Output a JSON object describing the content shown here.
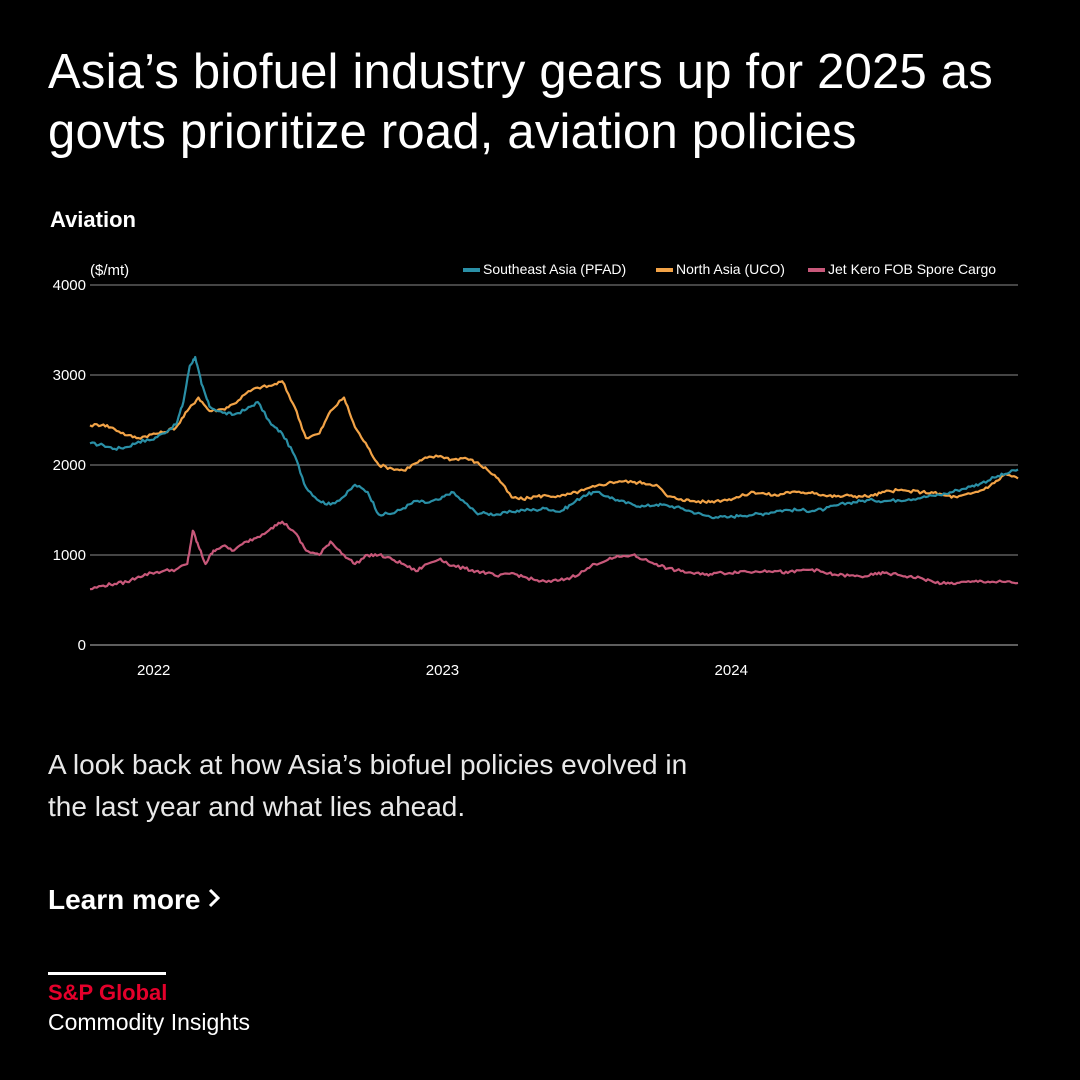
{
  "header": {
    "title": "Asia’s biofuel industry gears up for 2025 as govts prioritize road, aviation policies",
    "subtitle": "Aviation"
  },
  "chart_data": {
    "type": "line",
    "unit_label": "($/mt)",
    "ylim": [
      0,
      4000
    ],
    "yticks": [
      0,
      1000,
      2000,
      3000,
      4000
    ],
    "xlim": [
      "2021-10-15",
      "2024-12-31"
    ],
    "xtick_labels": [
      {
        "date": "2022-01-01",
        "label": "2022"
      },
      {
        "date": "2023-01-01",
        "label": "2023"
      },
      {
        "date": "2024-01-01",
        "label": "2024"
      }
    ],
    "grid": true,
    "legend_position": "top-right",
    "series": [
      {
        "name": "Southeast Asia (PFAD)",
        "color": "#2a8fa6",
        "points": [
          [
            "2021-10-15",
            2240
          ],
          [
            "2021-11-01",
            2220
          ],
          [
            "2021-11-15",
            2180
          ],
          [
            "2021-12-01",
            2200
          ],
          [
            "2021-12-15",
            2260
          ],
          [
            "2022-01-01",
            2280
          ],
          [
            "2022-01-15",
            2350
          ],
          [
            "2022-02-01",
            2450
          ],
          [
            "2022-02-10",
            2700
          ],
          [
            "2022-02-18",
            3100
          ],
          [
            "2022-02-25",
            3200
          ],
          [
            "2022-03-05",
            2900
          ],
          [
            "2022-03-15",
            2650
          ],
          [
            "2022-04-01",
            2580
          ],
          [
            "2022-04-15",
            2560
          ],
          [
            "2022-05-01",
            2620
          ],
          [
            "2022-05-15",
            2700
          ],
          [
            "2022-06-01",
            2450
          ],
          [
            "2022-06-15",
            2350
          ],
          [
            "2022-07-01",
            2100
          ],
          [
            "2022-07-15",
            1750
          ],
          [
            "2022-08-01",
            1600
          ],
          [
            "2022-08-15",
            1560
          ],
          [
            "2022-09-01",
            1650
          ],
          [
            "2022-09-15",
            1780
          ],
          [
            "2022-10-01",
            1700
          ],
          [
            "2022-10-15",
            1450
          ],
          [
            "2022-11-01",
            1460
          ],
          [
            "2022-11-15",
            1520
          ],
          [
            "2022-12-01",
            1600
          ],
          [
            "2022-12-15",
            1580
          ],
          [
            "2023-01-01",
            1620
          ],
          [
            "2023-01-15",
            1700
          ],
          [
            "2023-02-01",
            1580
          ],
          [
            "2023-02-15",
            1470
          ],
          [
            "2023-03-01",
            1460
          ],
          [
            "2023-03-15",
            1450
          ],
          [
            "2023-04-01",
            1480
          ],
          [
            "2023-04-15",
            1500
          ],
          [
            "2023-05-01",
            1500
          ],
          [
            "2023-05-15",
            1520
          ],
          [
            "2023-06-01",
            1480
          ],
          [
            "2023-06-15",
            1560
          ],
          [
            "2023-07-01",
            1660
          ],
          [
            "2023-07-15",
            1700
          ],
          [
            "2023-08-01",
            1650
          ],
          [
            "2023-08-15",
            1600
          ],
          [
            "2023-09-01",
            1560
          ],
          [
            "2023-09-15",
            1540
          ],
          [
            "2023-10-01",
            1560
          ],
          [
            "2023-10-15",
            1550
          ],
          [
            "2023-11-01",
            1520
          ],
          [
            "2023-11-15",
            1480
          ],
          [
            "2023-12-01",
            1440
          ],
          [
            "2023-12-15",
            1420
          ],
          [
            "2024-01-01",
            1420
          ],
          [
            "2024-01-15",
            1440
          ],
          [
            "2024-02-01",
            1450
          ],
          [
            "2024-02-15",
            1460
          ],
          [
            "2024-03-01",
            1490
          ],
          [
            "2024-03-15",
            1500
          ],
          [
            "2024-04-01",
            1500
          ],
          [
            "2024-04-15",
            1490
          ],
          [
            "2024-05-01",
            1510
          ],
          [
            "2024-05-15",
            1550
          ],
          [
            "2024-06-01",
            1580
          ],
          [
            "2024-06-15",
            1600
          ],
          [
            "2024-07-01",
            1610
          ],
          [
            "2024-07-15",
            1600
          ],
          [
            "2024-08-01",
            1610
          ],
          [
            "2024-08-15",
            1620
          ],
          [
            "2024-09-01",
            1640
          ],
          [
            "2024-09-15",
            1660
          ],
          [
            "2024-10-01",
            1680
          ],
          [
            "2024-10-15",
            1720
          ],
          [
            "2024-11-01",
            1760
          ],
          [
            "2024-11-15",
            1800
          ],
          [
            "2024-12-01",
            1860
          ],
          [
            "2024-12-15",
            1900
          ],
          [
            "2024-12-31",
            1950
          ]
        ]
      },
      {
        "name": "North Asia (UCO)",
        "color": "#f2a347",
        "points": [
          [
            "2021-10-15",
            2440
          ],
          [
            "2021-11-01",
            2450
          ],
          [
            "2021-11-15",
            2400
          ],
          [
            "2021-12-01",
            2330
          ],
          [
            "2021-12-15",
            2300
          ],
          [
            "2022-01-01",
            2340
          ],
          [
            "2022-01-15",
            2360
          ],
          [
            "2022-02-01",
            2420
          ],
          [
            "2022-02-15",
            2600
          ],
          [
            "2022-03-01",
            2750
          ],
          [
            "2022-03-15",
            2600
          ],
          [
            "2022-04-01",
            2620
          ],
          [
            "2022-04-15",
            2680
          ],
          [
            "2022-05-01",
            2800
          ],
          [
            "2022-05-15",
            2860
          ],
          [
            "2022-06-01",
            2880
          ],
          [
            "2022-06-15",
            2930
          ],
          [
            "2022-07-01",
            2640
          ],
          [
            "2022-07-15",
            2300
          ],
          [
            "2022-08-01",
            2350
          ],
          [
            "2022-08-15",
            2600
          ],
          [
            "2022-09-01",
            2750
          ],
          [
            "2022-09-15",
            2420
          ],
          [
            "2022-10-01",
            2200
          ],
          [
            "2022-10-15",
            2000
          ],
          [
            "2022-11-01",
            1960
          ],
          [
            "2022-11-15",
            1940
          ],
          [
            "2022-12-01",
            2020
          ],
          [
            "2022-12-15",
            2080
          ],
          [
            "2023-01-01",
            2100
          ],
          [
            "2023-01-15",
            2060
          ],
          [
            "2023-02-01",
            2080
          ],
          [
            "2023-02-15",
            2030
          ],
          [
            "2023-03-01",
            1950
          ],
          [
            "2023-03-15",
            1850
          ],
          [
            "2023-04-01",
            1640
          ],
          [
            "2023-04-15",
            1620
          ],
          [
            "2023-05-01",
            1650
          ],
          [
            "2023-05-15",
            1660
          ],
          [
            "2023-06-01",
            1650
          ],
          [
            "2023-06-15",
            1680
          ],
          [
            "2023-07-01",
            1720
          ],
          [
            "2023-07-15",
            1760
          ],
          [
            "2023-08-01",
            1800
          ],
          [
            "2023-08-15",
            1820
          ],
          [
            "2023-09-01",
            1810
          ],
          [
            "2023-09-15",
            1800
          ],
          [
            "2023-10-01",
            1780
          ],
          [
            "2023-10-15",
            1650
          ],
          [
            "2023-11-01",
            1620
          ],
          [
            "2023-11-15",
            1600
          ],
          [
            "2023-12-01",
            1590
          ],
          [
            "2023-12-15",
            1600
          ],
          [
            "2024-01-01",
            1620
          ],
          [
            "2024-01-15",
            1650
          ],
          [
            "2024-02-01",
            1700
          ],
          [
            "2024-02-15",
            1680
          ],
          [
            "2024-03-01",
            1660
          ],
          [
            "2024-03-15",
            1700
          ],
          [
            "2024-04-01",
            1690
          ],
          [
            "2024-04-15",
            1700
          ],
          [
            "2024-05-01",
            1660
          ],
          [
            "2024-05-15",
            1650
          ],
          [
            "2024-06-01",
            1660
          ],
          [
            "2024-06-15",
            1650
          ],
          [
            "2024-07-01",
            1660
          ],
          [
            "2024-07-15",
            1700
          ],
          [
            "2024-08-01",
            1720
          ],
          [
            "2024-08-15",
            1710
          ],
          [
            "2024-09-01",
            1700
          ],
          [
            "2024-09-15",
            1690
          ],
          [
            "2024-10-01",
            1660
          ],
          [
            "2024-10-15",
            1640
          ],
          [
            "2024-11-01",
            1680
          ],
          [
            "2024-11-15",
            1720
          ],
          [
            "2024-12-01",
            1800
          ],
          [
            "2024-12-15",
            1900
          ],
          [
            "2024-12-31",
            1850
          ]
        ]
      },
      {
        "name": "Jet Kero FOB Spore Cargo",
        "color": "#c8587a",
        "points": [
          [
            "2021-10-15",
            620
          ],
          [
            "2021-11-01",
            660
          ],
          [
            "2021-11-15",
            680
          ],
          [
            "2021-12-01",
            700
          ],
          [
            "2021-12-15",
            760
          ],
          [
            "2022-01-01",
            800
          ],
          [
            "2022-01-15",
            820
          ],
          [
            "2022-02-01",
            840
          ],
          [
            "2022-02-15",
            900
          ],
          [
            "2022-02-22",
            1270
          ],
          [
            "2022-03-01",
            1100
          ],
          [
            "2022-03-10",
            900
          ],
          [
            "2022-03-20",
            1050
          ],
          [
            "2022-04-01",
            1100
          ],
          [
            "2022-04-15",
            1050
          ],
          [
            "2022-05-01",
            1150
          ],
          [
            "2022-05-15",
            1200
          ],
          [
            "2022-06-01",
            1300
          ],
          [
            "2022-06-15",
            1370
          ],
          [
            "2022-07-01",
            1250
          ],
          [
            "2022-07-15",
            1050
          ],
          [
            "2022-08-01",
            1000
          ],
          [
            "2022-08-15",
            1150
          ],
          [
            "2022-09-01",
            1000
          ],
          [
            "2022-09-15",
            900
          ],
          [
            "2022-10-01",
            1000
          ],
          [
            "2022-10-15",
            1000
          ],
          [
            "2022-11-01",
            950
          ],
          [
            "2022-11-15",
            900
          ],
          [
            "2022-12-01",
            820
          ],
          [
            "2022-12-15",
            900
          ],
          [
            "2023-01-01",
            960
          ],
          [
            "2023-01-15",
            880
          ],
          [
            "2023-02-01",
            850
          ],
          [
            "2023-02-15",
            820
          ],
          [
            "2023-03-01",
            800
          ],
          [
            "2023-03-15",
            760
          ],
          [
            "2023-04-01",
            800
          ],
          [
            "2023-04-15",
            760
          ],
          [
            "2023-05-01",
            720
          ],
          [
            "2023-05-15",
            700
          ],
          [
            "2023-06-01",
            720
          ],
          [
            "2023-06-15",
            750
          ],
          [
            "2023-07-01",
            820
          ],
          [
            "2023-07-15",
            900
          ],
          [
            "2023-08-01",
            950
          ],
          [
            "2023-08-15",
            980
          ],
          [
            "2023-09-01",
            1000
          ],
          [
            "2023-09-15",
            950
          ],
          [
            "2023-10-01",
            900
          ],
          [
            "2023-10-15",
            850
          ],
          [
            "2023-11-01",
            820
          ],
          [
            "2023-11-15",
            800
          ],
          [
            "2023-12-01",
            780
          ],
          [
            "2023-12-15",
            800
          ],
          [
            "2024-01-01",
            800
          ],
          [
            "2024-01-15",
            820
          ],
          [
            "2024-02-01",
            810
          ],
          [
            "2024-02-15",
            830
          ],
          [
            "2024-03-01",
            820
          ],
          [
            "2024-03-15",
            800
          ],
          [
            "2024-04-01",
            830
          ],
          [
            "2024-04-15",
            840
          ],
          [
            "2024-05-01",
            800
          ],
          [
            "2024-05-15",
            780
          ],
          [
            "2024-06-01",
            770
          ],
          [
            "2024-06-15",
            760
          ],
          [
            "2024-07-01",
            780
          ],
          [
            "2024-07-15",
            800
          ],
          [
            "2024-08-01",
            780
          ],
          [
            "2024-08-15",
            760
          ],
          [
            "2024-09-01",
            740
          ],
          [
            "2024-09-15",
            700
          ],
          [
            "2024-10-01",
            680
          ],
          [
            "2024-10-15",
            690
          ],
          [
            "2024-11-01",
            700
          ],
          [
            "2024-11-15",
            710
          ],
          [
            "2024-12-01",
            700
          ],
          [
            "2024-12-15",
            700
          ],
          [
            "2024-12-31",
            690
          ]
        ]
      }
    ]
  },
  "body": {
    "blurb": "A look back at how Asia’s biofuel policies evolved in the last year and what lies ahead.",
    "cta_label": "Learn more"
  },
  "footer": {
    "brand": "S&P Global",
    "unit": "Commodity Insights"
  }
}
